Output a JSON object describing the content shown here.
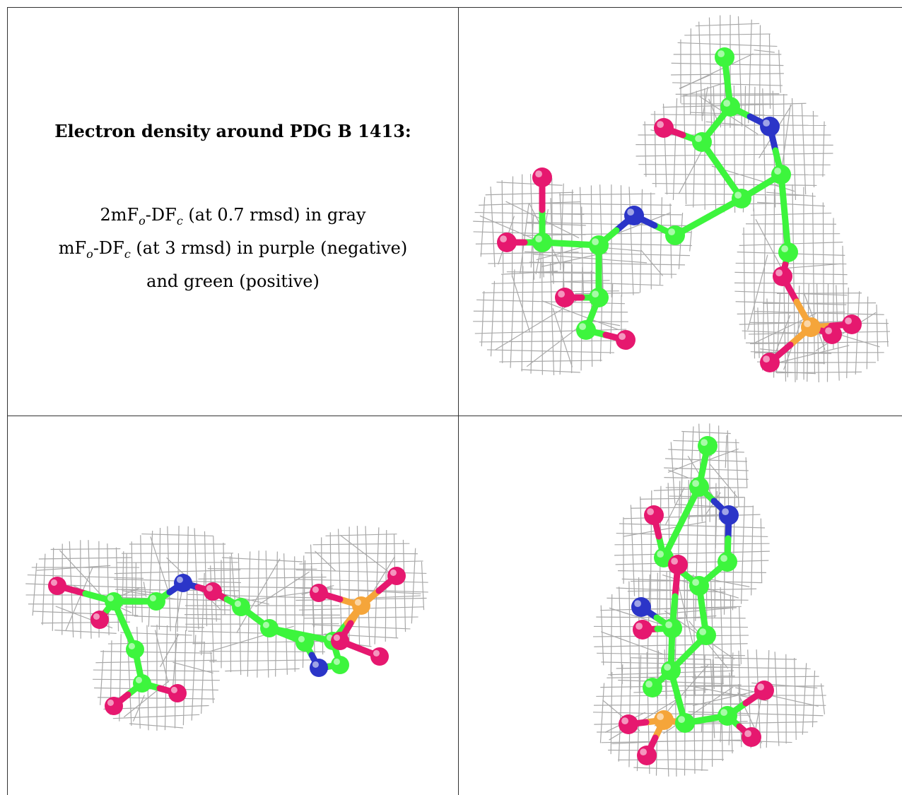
{
  "caption": {
    "title": "Electron density around PDG B 1413:",
    "line1": {
      "pre": "2mF",
      "sub1": "o",
      "mid": "-DF",
      "sub2": "c",
      "post": " (at 0.7 rmsd) in gray"
    },
    "line2": {
      "pre": "mF",
      "sub1": "o",
      "mid": "-DF",
      "sub2": "c",
      "post": " (at 3 rmsd) in purple (negative)"
    },
    "line3": "and green (positive)"
  },
  "colors": {
    "carbon": "#3df53d",
    "oxygen": "#e6186f",
    "nitrogen": "#2b35c8",
    "phosphorus": "#f5a53a",
    "mesh": "#9a9a9a",
    "grid_border": "#333333"
  },
  "panels": [
    {
      "name": "view-1",
      "icon": "molecule-mesh-icon"
    },
    {
      "name": "view-2",
      "icon": "molecule-mesh-icon"
    },
    {
      "name": "view-3",
      "icon": "molecule-mesh-icon"
    }
  ]
}
